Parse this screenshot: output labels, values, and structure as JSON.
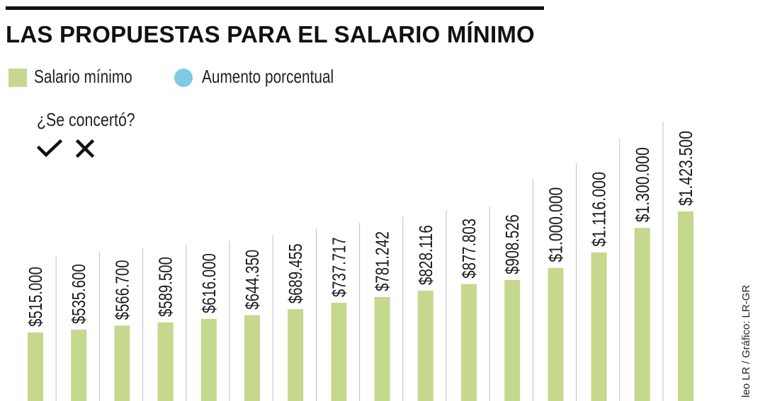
{
  "title": "LAS PROPUESTAS PARA EL SALARIO MÍNIMO",
  "legend": {
    "items": [
      {
        "label": "Salario mínimo",
        "color": "#c5d88e",
        "shape": "square"
      },
      {
        "label": "Aumento porcentual",
        "color": "#7ecbe3",
        "shape": "circle"
      }
    ]
  },
  "concert": {
    "question": "¿Se concertó?",
    "yes_icon": "check-icon",
    "no_icon": "x-icon"
  },
  "credit": "leo LR / Gráfico: LR-GR",
  "colors": {
    "bar": "#c5d88e",
    "divider": "#bfbfbf",
    "text": "#1a1a1a"
  },
  "chart_data": {
    "type": "bar",
    "title": "LAS PROPUESTAS PARA EL SALARIO MÍNIMO",
    "xlabel": "",
    "ylabel": "",
    "grid": false,
    "legend_position": "top-left",
    "ylim": [
      0,
      1423500
    ],
    "series": [
      {
        "name": "Salario mínimo",
        "values": [
          515000,
          535600,
          566700,
          589500,
          616000,
          644350,
          689455,
          737717,
          781242,
          828116,
          877803,
          908526,
          1000000,
          1116000,
          1300000,
          1423500
        ],
        "labels": [
          "$515.000",
          "$535.600",
          "$566.700",
          "$589.500",
          "$616.000",
          "$644.350",
          "$689.455",
          "$737.717",
          "$781.242",
          "$828.116",
          "$877.803",
          "$908.526",
          "$1.000.000",
          "$1.116.000",
          "$1.300.000",
          "$1.423.500"
        ]
      }
    ]
  }
}
